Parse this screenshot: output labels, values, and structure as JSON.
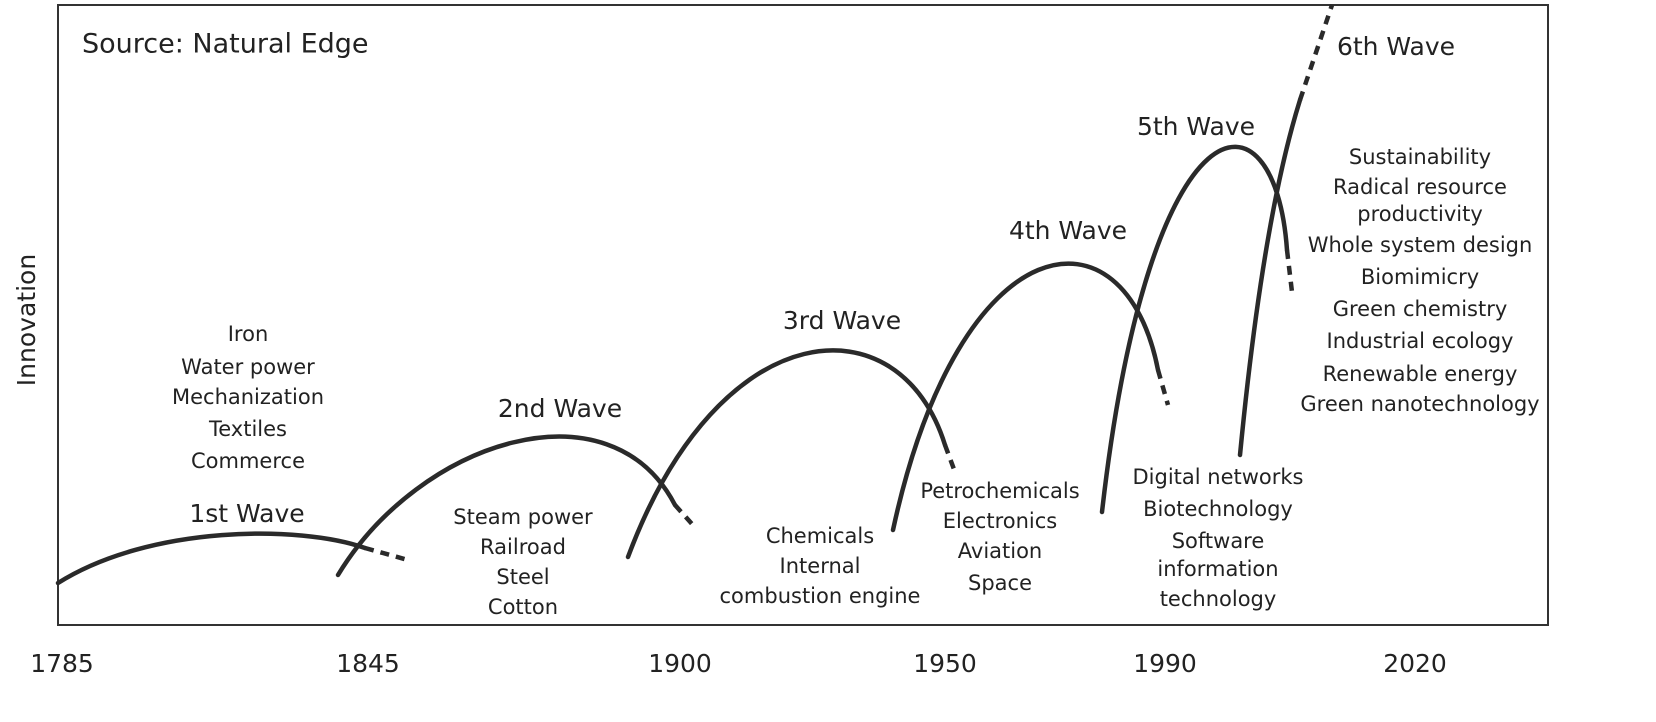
{
  "source": "Source: Natural Edge",
  "y_axis_label": "Innovation",
  "x_axis_labels": [
    "1785",
    "1845",
    "1900",
    "1950",
    "1990",
    "2020"
  ],
  "waves": [
    {
      "label": "1st Wave",
      "items": [
        "Iron",
        "Water power",
        "Mechanization",
        "Textiles",
        "Commerce"
      ]
    },
    {
      "label": "2nd Wave",
      "items": [
        "Steam power",
        "Railroad",
        "Steel",
        "Cotton"
      ]
    },
    {
      "label": "3rd Wave",
      "items": [
        "Chemicals",
        "Internal",
        "combustion engine"
      ]
    },
    {
      "label": "4th Wave",
      "items": [
        "Petrochemicals",
        "Electronics",
        "Aviation",
        "Space"
      ]
    },
    {
      "label": "5th Wave",
      "items": [
        "Digital networks",
        "Biotechnology",
        "Software",
        "information",
        "technology"
      ]
    },
    {
      "label": "6th Wave",
      "items": [
        "Sustainability",
        "Radical resource",
        "productivity",
        "Whole system design",
        "Biomimicry",
        "Green chemistry",
        "Industrial ecology",
        "Renewable energy",
        "Green nanotechnology"
      ]
    }
  ]
}
